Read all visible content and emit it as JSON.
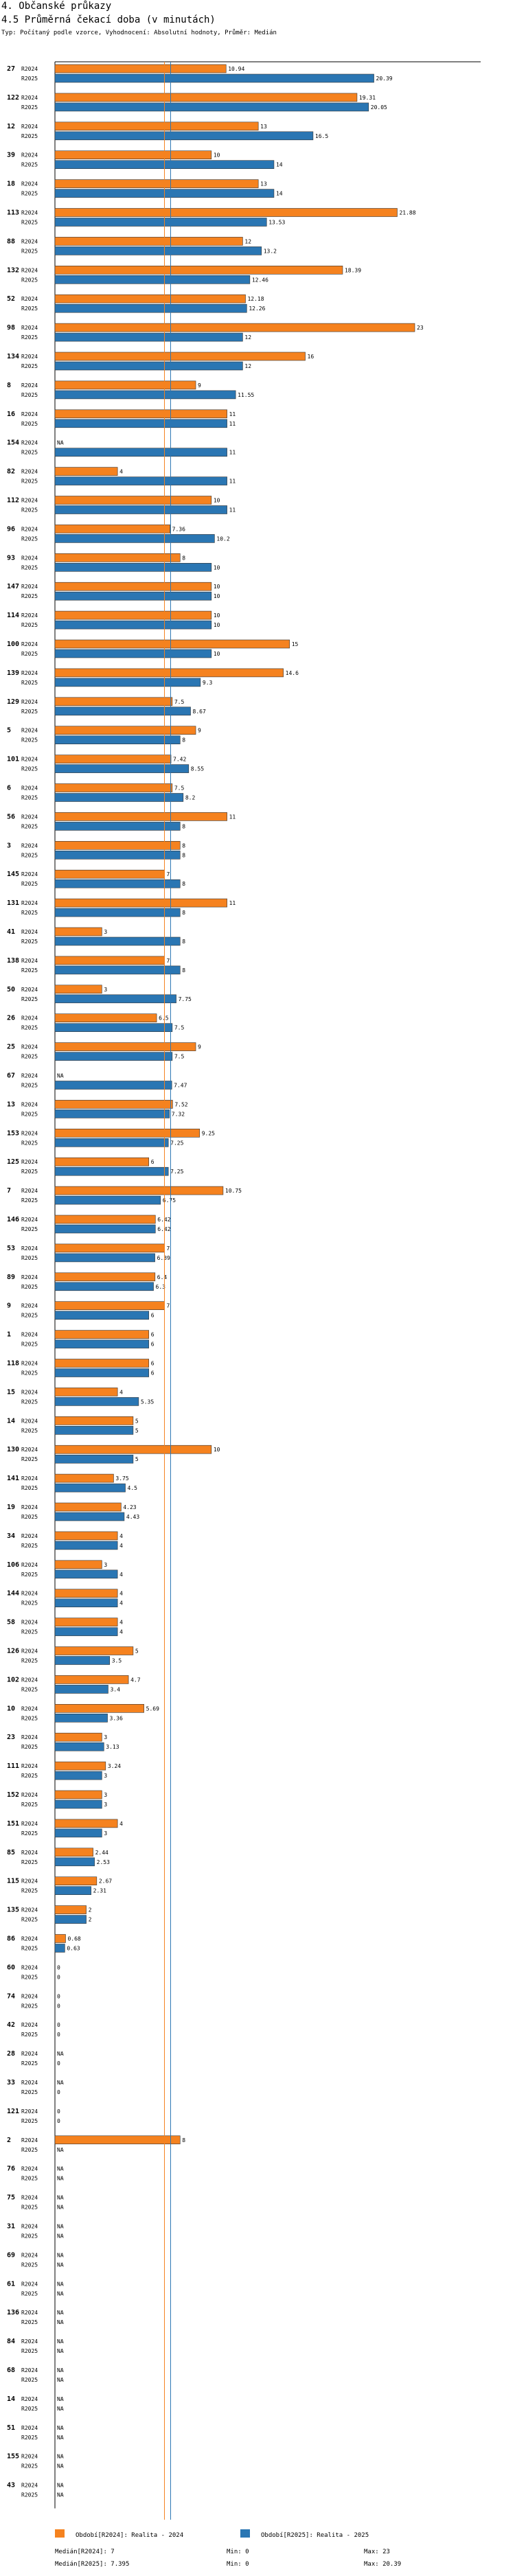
{
  "header": {
    "section": "4. Občanské průkazy",
    "title": "4.5 Průměrná čekací doba (v minutách)",
    "subtitle": "Typ: Počítaný podle vzorce, Vyhodnocení: Absolutní hodnoty, Průměr: Medián"
  },
  "colors": {
    "r2024": "#F5821F",
    "r2025": "#2A76B3",
    "median2024": "#F5821F",
    "median2025": "#2A76B3",
    "axis": "#000000"
  },
  "chart_data": {
    "type": "bar",
    "orientation": "horizontal",
    "title": "4.5 Průměrná čekací doba (v minutách)",
    "x_range": [
      0,
      23
    ],
    "na_label": "NA",
    "series": [
      {
        "name": "R2024",
        "description": "Realita - 2024"
      },
      {
        "name": "R2025",
        "description": "Realita - 2025"
      }
    ],
    "categories": [
      {
        "id": "27",
        "r2024": "10.94",
        "r2025": "20.39"
      },
      {
        "id": "122",
        "r2024": "19.31",
        "r2025": "20.05"
      },
      {
        "id": "12",
        "r2024": "13",
        "r2025": "16.5"
      },
      {
        "id": "39",
        "r2024": "10",
        "r2025": "14"
      },
      {
        "id": "18",
        "r2024": "13",
        "r2025": "14"
      },
      {
        "id": "113",
        "r2024": "21.88",
        "r2025": "13.53"
      },
      {
        "id": "88",
        "r2024": "12",
        "r2025": "13.2"
      },
      {
        "id": "132",
        "r2024": "18.39",
        "r2025": "12.46"
      },
      {
        "id": "52",
        "r2024": "12.18",
        "r2025": "12.26"
      },
      {
        "id": "98",
        "r2024": "23",
        "r2025": "12"
      },
      {
        "id": "134",
        "r2024": "16",
        "r2025": "12"
      },
      {
        "id": "8",
        "r2024": "9",
        "r2025": "11.55"
      },
      {
        "id": "16",
        "r2024": "11",
        "r2025": "11"
      },
      {
        "id": "154",
        "r2024": "NA",
        "r2025": "11"
      },
      {
        "id": "82",
        "r2024": "4",
        "r2025": "11"
      },
      {
        "id": "112",
        "r2024": "10",
        "r2025": "11"
      },
      {
        "id": "96",
        "r2024": "7.36",
        "r2025": "10.2"
      },
      {
        "id": "93",
        "r2024": "8",
        "r2025": "10"
      },
      {
        "id": "147",
        "r2024": "10",
        "r2025": "10"
      },
      {
        "id": "114",
        "r2024": "10",
        "r2025": "10"
      },
      {
        "id": "100",
        "r2024": "15",
        "r2025": "10"
      },
      {
        "id": "139",
        "r2024": "14.6",
        "r2025": "9.3"
      },
      {
        "id": "129",
        "r2024": "7.5",
        "r2025": "8.67"
      },
      {
        "id": "5",
        "r2024": "9",
        "r2025": "8"
      },
      {
        "id": "101",
        "r2024": "7.42",
        "r2025": "8.55"
      },
      {
        "id": "6",
        "r2024": "7.5",
        "r2025": "8.2"
      },
      {
        "id": "56",
        "r2024": "11",
        "r2025": "8"
      },
      {
        "id": "3",
        "r2024": "8",
        "r2025": "8"
      },
      {
        "id": "145",
        "r2024": "7",
        "r2025": "8"
      },
      {
        "id": "131",
        "r2024": "11",
        "r2025": "8"
      },
      {
        "id": "41",
        "r2024": "3",
        "r2025": "8"
      },
      {
        "id": "138",
        "r2024": "7",
        "r2025": "8"
      },
      {
        "id": "50",
        "r2024": "3",
        "r2025": "7.75"
      },
      {
        "id": "26",
        "r2024": "6.5",
        "r2025": "7.5"
      },
      {
        "id": "25",
        "r2024": "9",
        "r2025": "7.5"
      },
      {
        "id": "67",
        "r2024": "NA",
        "r2025": "7.47"
      },
      {
        "id": "13",
        "r2024": "7.52",
        "r2025": "7.32"
      },
      {
        "id": "153",
        "r2024": "9.25",
        "r2025": "7.25"
      },
      {
        "id": "125",
        "r2024": "6",
        "r2025": "7.25"
      },
      {
        "id": "7",
        "r2024": "10.75",
        "r2025": "6.75"
      },
      {
        "id": "146",
        "r2024": "6.42",
        "r2025": "6.42"
      },
      {
        "id": "53",
        "r2024": "7",
        "r2025": "6.39"
      },
      {
        "id": "89",
        "r2024": "6.4",
        "r2025": "6.3"
      },
      {
        "id": "9",
        "r2024": "7",
        "r2025": "6"
      },
      {
        "id": "1",
        "r2024": "6",
        "r2025": "6"
      },
      {
        "id": "118",
        "r2024": "6",
        "r2025": "6"
      },
      {
        "id": "15",
        "r2024": "4",
        "r2025": "5.35"
      },
      {
        "id": "14",
        "r2024": "5",
        "r2025": "5"
      },
      {
        "id": "130",
        "r2024": "10",
        "r2025": "5"
      },
      {
        "id": "141",
        "r2024": "3.75",
        "r2025": "4.5"
      },
      {
        "id": "19",
        "r2024": "4.23",
        "r2025": "4.43"
      },
      {
        "id": "34",
        "r2024": "4",
        "r2025": "4"
      },
      {
        "id": "106",
        "r2024": "3",
        "r2025": "4"
      },
      {
        "id": "144",
        "r2024": "4",
        "r2025": "4"
      },
      {
        "id": "58",
        "r2024": "4",
        "r2025": "4"
      },
      {
        "id": "126",
        "r2024": "5",
        "r2025": "3.5"
      },
      {
        "id": "102",
        "r2024": "4.7",
        "r2025": "3.4"
      },
      {
        "id": "10",
        "r2024": "5.69",
        "r2025": "3.36"
      },
      {
        "id": "23",
        "r2024": "3",
        "r2025": "3.13"
      },
      {
        "id": "111",
        "r2024": "3.24",
        "r2025": "3"
      },
      {
        "id": "152",
        "r2024": "3",
        "r2025": "3"
      },
      {
        "id": "151",
        "r2024": "4",
        "r2025": "3"
      },
      {
        "id": "85",
        "r2024": "2.44",
        "r2025": "2.53"
      },
      {
        "id": "115",
        "r2024": "2.67",
        "r2025": "2.31"
      },
      {
        "id": "135",
        "r2024": "2",
        "r2025": "2"
      },
      {
        "id": "86",
        "r2024": "0.68",
        "r2025": "0.63"
      },
      {
        "id": "60",
        "r2024": "0",
        "r2025": "0"
      },
      {
        "id": "74",
        "r2024": "0",
        "r2025": "0"
      },
      {
        "id": "42",
        "r2024": "0",
        "r2025": "0"
      },
      {
        "id": "28",
        "r2024": "NA",
        "r2025": "0"
      },
      {
        "id": "33",
        "r2024": "NA",
        "r2025": "0"
      },
      {
        "id": "121",
        "r2024": "0",
        "r2025": "0"
      },
      {
        "id": "2",
        "r2024": "8",
        "r2025": "NA"
      },
      {
        "id": "76",
        "r2024": "NA",
        "r2025": "NA"
      },
      {
        "id": "75",
        "r2024": "NA",
        "r2025": "NA"
      },
      {
        "id": "31",
        "r2024": "NA",
        "r2025": "NA"
      },
      {
        "id": "69",
        "r2024": "NA",
        "r2025": "NA"
      },
      {
        "id": "61",
        "r2024": "NA",
        "r2025": "NA"
      },
      {
        "id": "136",
        "r2024": "NA",
        "r2025": "NA"
      },
      {
        "id": "84",
        "r2024": "NA",
        "r2025": "NA"
      },
      {
        "id": "68",
        "r2024": "NA",
        "r2025": "NA"
      },
      {
        "id": "14",
        "r2024": "NA",
        "r2025": "NA"
      },
      {
        "id": "51",
        "r2024": "NA",
        "r2025": "NA"
      },
      {
        "id": "155",
        "r2024": "NA",
        "r2025": "NA"
      },
      {
        "id": "43",
        "r2024": "NA",
        "r2025": "NA"
      }
    ],
    "medians": {
      "r2024": 7,
      "r2025": 7.395
    }
  },
  "footer": {
    "period1": "Období[R2024]: Realita - 2024",
    "period2": "Období[R2025]: Realita - 2025",
    "median1": "Medián[R2024]: 7",
    "min1": "Min: 0",
    "max1": "Max: 23",
    "median2": "Medián[R2025]: 7.395",
    "min2": "Min: 0",
    "max2": "Max: 20.39"
  }
}
